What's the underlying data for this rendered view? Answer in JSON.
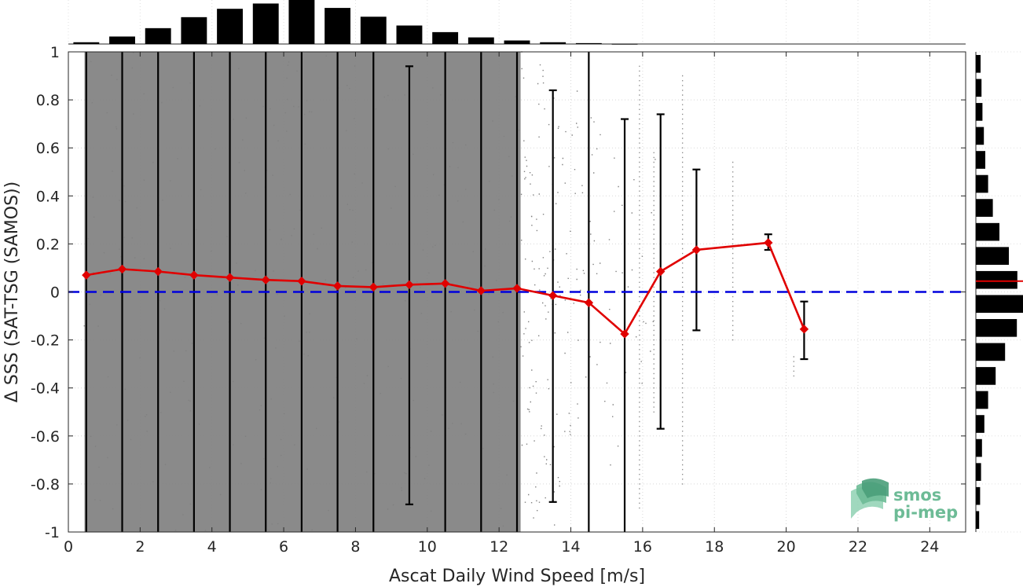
{
  "chart_data": {
    "type": "scatter",
    "xlabel": "Ascat Daily Wind Speed [m/s]",
    "ylabel": "Δ SSS (SAT-TSG (SAMOS))",
    "xlim": [
      0,
      25
    ],
    "ylim": [
      -1,
      1
    ],
    "x_ticks": [
      0,
      2,
      4,
      6,
      8,
      10,
      12,
      14,
      16,
      18,
      20,
      22,
      24
    ],
    "x_tick_labels": [
      "0",
      "2",
      "4",
      "6",
      "8",
      "10",
      "12",
      "14",
      "16",
      "18",
      "20",
      "22",
      "24"
    ],
    "y_ticks": [
      1,
      0.8,
      0.6,
      0.4,
      0.2,
      0,
      -0.2,
      -0.4,
      -0.6,
      -0.8,
      -1
    ],
    "y_tick_labels": [
      "1",
      "0.8",
      "0.6",
      "0.4",
      "0.2",
      "0",
      "-0.2",
      "-0.4",
      "-0.6",
      "-0.8",
      "-1"
    ],
    "grid": true,
    "scatter_color": "#808080",
    "reference_line": {
      "y": 0,
      "style": "dashed",
      "color": "#0000dd"
    },
    "mean_series": {
      "color": "#e00000",
      "marker": "diamond",
      "x": [
        0.5,
        1.5,
        2.5,
        3.5,
        4.5,
        5.5,
        6.5,
        7.5,
        8.5,
        9.5,
        10.5,
        11.5,
        12.5,
        13.5,
        14.5,
        15.5,
        16.5,
        17.5,
        19.5,
        20.5
      ],
      "y": [
        0.07,
        0.095,
        0.085,
        0.07,
        0.06,
        0.05,
        0.045,
        0.025,
        0.02,
        0.03,
        0.035,
        0.005,
        0.015,
        -0.015,
        -0.045,
        -0.175,
        0.085,
        0.175,
        0.205,
        -0.155
      ]
    },
    "error_bars": {
      "color": "#000000",
      "x": [
        0.5,
        1.5,
        2.5,
        3.5,
        4.5,
        5.5,
        6.5,
        7.5,
        8.5,
        9.5,
        10.5,
        11.5,
        12.5,
        13.5,
        14.5,
        15.5,
        16.5,
        17.5,
        19.5,
        20.5
      ],
      "lower": [
        -1,
        -1,
        -1,
        -1,
        -1,
        -1,
        -1,
        -1,
        -1,
        -0.885,
        -1,
        -1,
        -1,
        -0.875,
        -1,
        -1,
        -0.57,
        -0.16,
        0.175,
        -0.28
      ],
      "upper": [
        1,
        1,
        1,
        1,
        1,
        1,
        1,
        1,
        1,
        0.94,
        1,
        1,
        1,
        0.84,
        1,
        0.72,
        0.74,
        0.51,
        0.24,
        -0.04
      ]
    },
    "top_histogram": {
      "bin_centers": [
        0.5,
        1.5,
        2.5,
        3.5,
        4.5,
        5.5,
        6.5,
        7.5,
        8.5,
        9.5,
        10.5,
        11.5,
        12.5,
        13.5,
        14.5,
        15.5
      ],
      "relative_counts": [
        0.04,
        0.17,
        0.36,
        0.61,
        0.8,
        0.92,
        1.0,
        0.82,
        0.62,
        0.42,
        0.27,
        0.15,
        0.08,
        0.04,
        0.02,
        0.005
      ],
      "color": "#000000"
    },
    "right_histogram": {
      "bin_centers": [
        0.95,
        0.85,
        0.75,
        0.65,
        0.55,
        0.45,
        0.35,
        0.25,
        0.15,
        0.05,
        -0.05,
        -0.15,
        -0.25,
        -0.35,
        -0.45,
        -0.55,
        -0.65,
        -0.75,
        -0.85,
        -0.95
      ],
      "relative_counts": [
        0.1,
        0.12,
        0.14,
        0.17,
        0.2,
        0.26,
        0.36,
        0.5,
        0.7,
        0.88,
        1.0,
        0.87,
        0.62,
        0.42,
        0.26,
        0.18,
        0.13,
        0.11,
        0.09,
        0.07
      ],
      "color": "#000000",
      "mean_marker": {
        "y": 0.045,
        "color": "#e00000"
      }
    }
  },
  "logo": {
    "line1": "smos",
    "line2": "pi-mep",
    "color": "#6dbb96"
  }
}
